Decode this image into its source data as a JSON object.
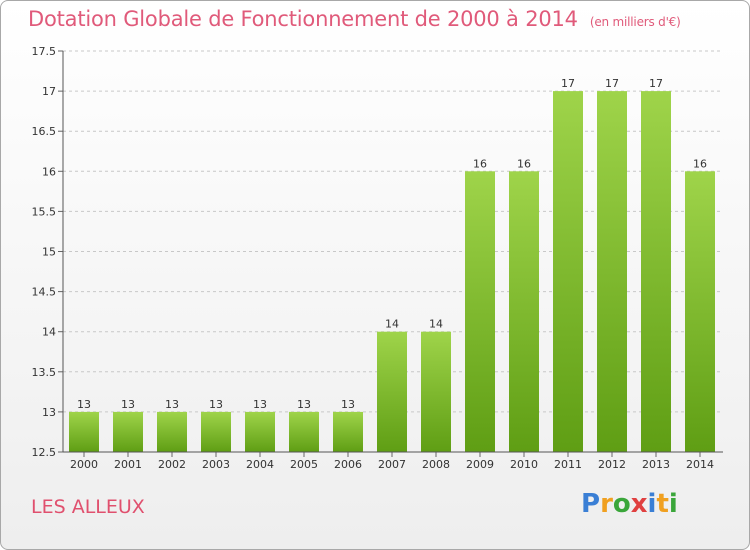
{
  "header": {
    "title": "Dotation Globale de Fonctionnement de 2000 à 2014",
    "unit": "(en milliers d'€)"
  },
  "commune": "LES ALLEUX",
  "logo": {
    "letters": [
      "P",
      "r",
      "o",
      "x",
      "i",
      "t",
      "i"
    ],
    "colors": [
      "#3a7fd5",
      "#f0a020",
      "#3aa63a",
      "#e04040",
      "#3a7fd5",
      "#f0a020",
      "#3aa63a"
    ]
  },
  "chart_data": {
    "type": "bar",
    "categories": [
      "2000",
      "2001",
      "2002",
      "2003",
      "2004",
      "2005",
      "2006",
      "2007",
      "2008",
      "2009",
      "2010",
      "2011",
      "2012",
      "2013",
      "2014"
    ],
    "values": [
      13,
      13,
      13,
      13,
      13,
      13,
      13,
      14,
      14,
      16,
      16,
      17,
      17,
      17,
      16
    ],
    "title": "Dotation Globale de Fonctionnement de 2000 à 2014",
    "xlabel": "",
    "ylabel": "",
    "ylim": [
      12.5,
      17.5
    ],
    "yticks": [
      12.5,
      13,
      13.5,
      14,
      14.5,
      15,
      15.5,
      16,
      16.5,
      17,
      17.5
    ],
    "ytick_labels": [
      "12.5",
      "13",
      "13.5",
      "14",
      "14.5",
      "15",
      "15.5",
      "16",
      "16.5",
      "17",
      "17.5"
    ],
    "grid": true,
    "bar_color": "#7fbf2a"
  }
}
